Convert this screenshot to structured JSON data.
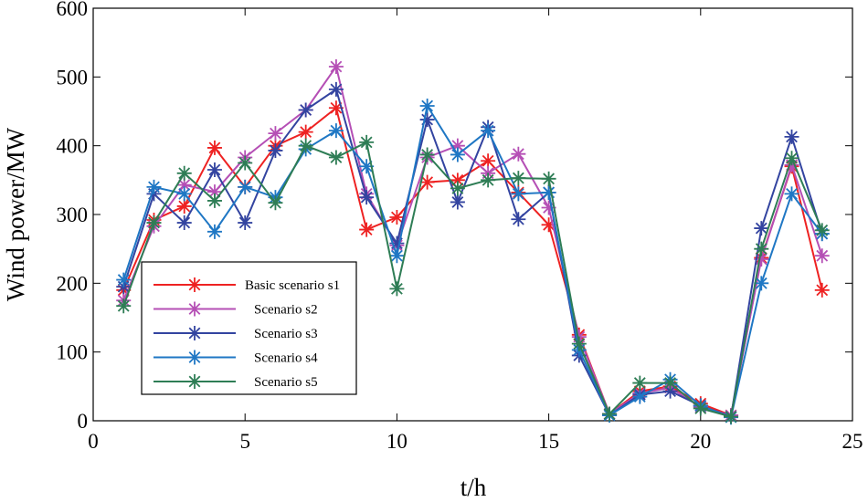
{
  "chart_data": {
    "type": "line",
    "title": "",
    "xlabel": "t/h",
    "ylabel": "Wind power/MW",
    "xlim": [
      0,
      25
    ],
    "ylim": [
      0,
      600
    ],
    "xticks": [
      0,
      5,
      10,
      15,
      20,
      25
    ],
    "yticks": [
      0,
      100,
      200,
      300,
      400,
      500,
      600
    ],
    "grid": false,
    "legend_position": "lower-left",
    "marker": "*",
    "x": [
      1,
      2,
      3,
      4,
      5,
      6,
      7,
      8,
      9,
      10,
      11,
      12,
      13,
      14,
      15,
      16,
      17,
      18,
      19,
      20,
      21,
      22,
      23,
      24
    ],
    "series": [
      {
        "name": "Basic scenario s1",
        "color": "#ee2222",
        "values": [
          190,
          292,
          312,
          397,
          340,
          400,
          420,
          455,
          278,
          296,
          347,
          350,
          378,
          332,
          285,
          125,
          10,
          43,
          50,
          25,
          8,
          237,
          370,
          190
        ]
      },
      {
        "name": "Scenario s2",
        "color": "#b54fb5",
        "values": [
          175,
          283,
          343,
          333,
          383,
          418,
          452,
          515,
          330,
          255,
          383,
          400,
          360,
          388,
          310,
          122,
          10,
          40,
          48,
          20,
          8,
          235,
          372,
          240
        ]
      },
      {
        "name": "Scenario s3",
        "color": "#3344a0",
        "values": [
          195,
          330,
          288,
          365,
          288,
          393,
          452,
          482,
          325,
          258,
          438,
          318,
          427,
          293,
          332,
          95,
          8,
          38,
          43,
          22,
          6,
          280,
          413,
          272
        ]
      },
      {
        "name": "Scenario s4",
        "color": "#1f77c4",
        "values": [
          205,
          340,
          330,
          275,
          340,
          325,
          395,
          422,
          370,
          240,
          458,
          387,
          422,
          330,
          332,
          103,
          8,
          35,
          60,
          22,
          5,
          200,
          330,
          272
        ]
      },
      {
        "name": "Scenario s5",
        "color": "#2e7d55",
        "values": [
          167,
          288,
          360,
          320,
          375,
          317,
          400,
          383,
          405,
          192,
          387,
          338,
          350,
          353,
          352,
          112,
          10,
          55,
          55,
          18,
          6,
          250,
          382,
          277
        ]
      }
    ]
  }
}
